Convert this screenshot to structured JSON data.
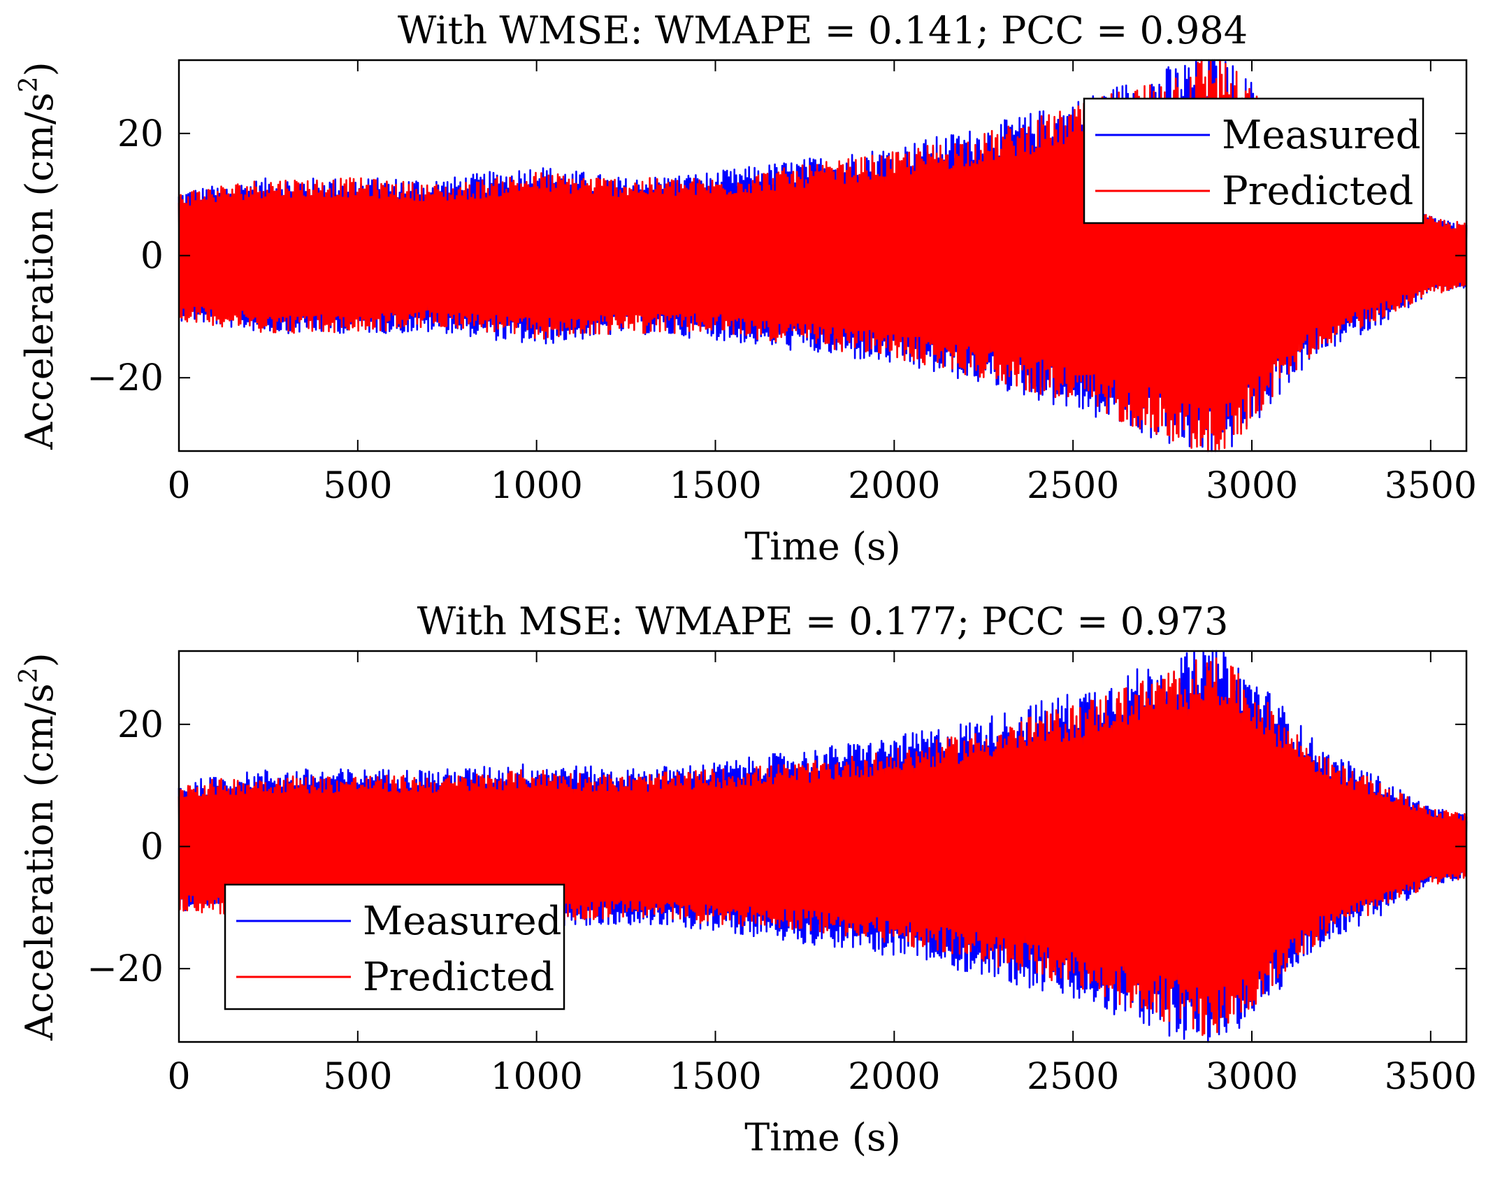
{
  "colors": {
    "measured": "#0000ff",
    "predicted": "#ff0000",
    "axis": "#000000",
    "background": "#ffffff"
  },
  "chart_data": [
    {
      "type": "line",
      "title": "With WMSE: WMAPE =  0.141; PCC = 0.984",
      "metrics": {
        "WMAPE": 0.141,
        "PCC": 0.984
      },
      "xlabel": "Time (s)",
      "ylabel_main": "Acceleration (cm/s",
      "ylabel_sup": "2",
      "ylabel_close": ")",
      "xlim": [
        0,
        3600
      ],
      "ylim": [
        -32,
        32
      ],
      "xticks": [
        0,
        500,
        1000,
        1500,
        2000,
        2500,
        3000,
        3500
      ],
      "xtick_labels": [
        "0",
        "500",
        "1000",
        "1500",
        "2000",
        "2500",
        "3000",
        "3500"
      ],
      "yticks": [
        -20,
        0,
        20
      ],
      "ytick_labels": [
        "−20",
        "0",
        "20"
      ],
      "legend": {
        "placement": "top-right",
        "entries": [
          "Measured",
          "Predicted"
        ]
      },
      "envelope_time": [
        0,
        250,
        500,
        750,
        1000,
        1250,
        1500,
        1750,
        2000,
        2250,
        2500,
        2750,
        2900,
        3000,
        3100,
        3200,
        3350,
        3500,
        3600
      ],
      "series": [
        {
          "name": "Measured",
          "amplitude": [
            10,
            12,
            12,
            12,
            14,
            12,
            13,
            15,
            17,
            20,
            24,
            29,
            32,
            27,
            20,
            15,
            11,
            6,
            5
          ]
        },
        {
          "name": "Predicted",
          "amplitude": [
            10,
            12,
            12,
            11,
            13,
            12,
            12,
            14,
            16,
            19,
            23,
            28,
            32,
            26,
            19,
            14,
            10,
            6,
            5
          ]
        }
      ]
    },
    {
      "type": "line",
      "title": "With MSE: WMAPE =  0.177; PCC = 0.973",
      "metrics": {
        "WMAPE": 0.177,
        "PCC": 0.973
      },
      "xlabel": "Time (s)",
      "ylabel_main": "Acceleration (cm/s",
      "ylabel_sup": "2",
      "ylabel_close": ")",
      "xlim": [
        0,
        3600
      ],
      "ylim": [
        -32,
        32
      ],
      "xticks": [
        0,
        500,
        1000,
        1500,
        2000,
        2500,
        3000,
        3500
      ],
      "xtick_labels": [
        "0",
        "500",
        "1000",
        "1500",
        "2000",
        "2500",
        "3000",
        "3500"
      ],
      "yticks": [
        -20,
        0,
        20
      ],
      "ytick_labels": [
        "−20",
        "0",
        "20"
      ],
      "legend": {
        "placement": "bottom-left",
        "entries": [
          "Measured",
          "Predicted"
        ]
      },
      "envelope_time": [
        0,
        250,
        500,
        750,
        1000,
        1250,
        1500,
        1750,
        2000,
        2250,
        2500,
        2750,
        2900,
        3000,
        3100,
        3200,
        3350,
        3500,
        3600
      ],
      "series": [
        {
          "name": "Measured",
          "amplitude": [
            10,
            12,
            12,
            12,
            13,
            12,
            13,
            15,
            17,
            20,
            24,
            29,
            31,
            27,
            21,
            15,
            11,
            6,
            5
          ]
        },
        {
          "name": "Predicted",
          "amplitude": [
            10,
            11,
            11,
            11,
            12,
            11,
            12,
            13,
            15,
            18,
            22,
            27,
            30,
            25,
            19,
            14,
            10,
            6,
            5
          ]
        }
      ]
    }
  ]
}
